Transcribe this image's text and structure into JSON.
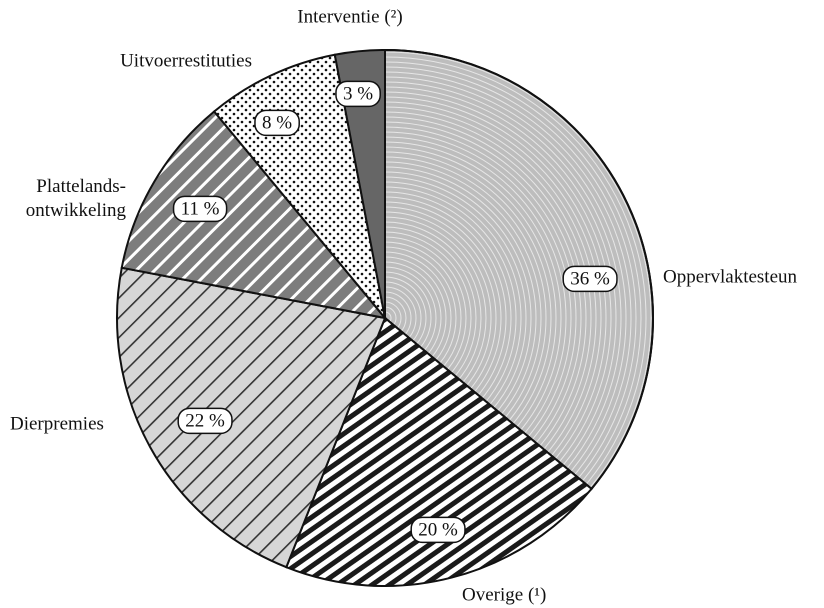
{
  "chart_data": {
    "type": "pie",
    "categories": [
      "Oppervlaktesteun",
      "Overige (¹)",
      "Dierpremies",
      "Plattelands-\nontwikkeling",
      "Uitvoerrestituties",
      "Interventie (²)"
    ],
    "values": [
      36,
      20,
      22,
      11,
      8,
      3
    ],
    "value_labels": [
      "36 %",
      "20 %",
      "22 %",
      "11 %",
      "8 %",
      "3 %"
    ],
    "colors": [
      "#bdbdbd",
      "#ffffff",
      "#d6d6d6",
      "#7d7d7d",
      "#ffffff",
      "#666666"
    ],
    "patterns": [
      "arcs",
      "dense-hatch",
      "hatch",
      "white-hatch",
      "dots",
      "solid"
    ]
  }
}
